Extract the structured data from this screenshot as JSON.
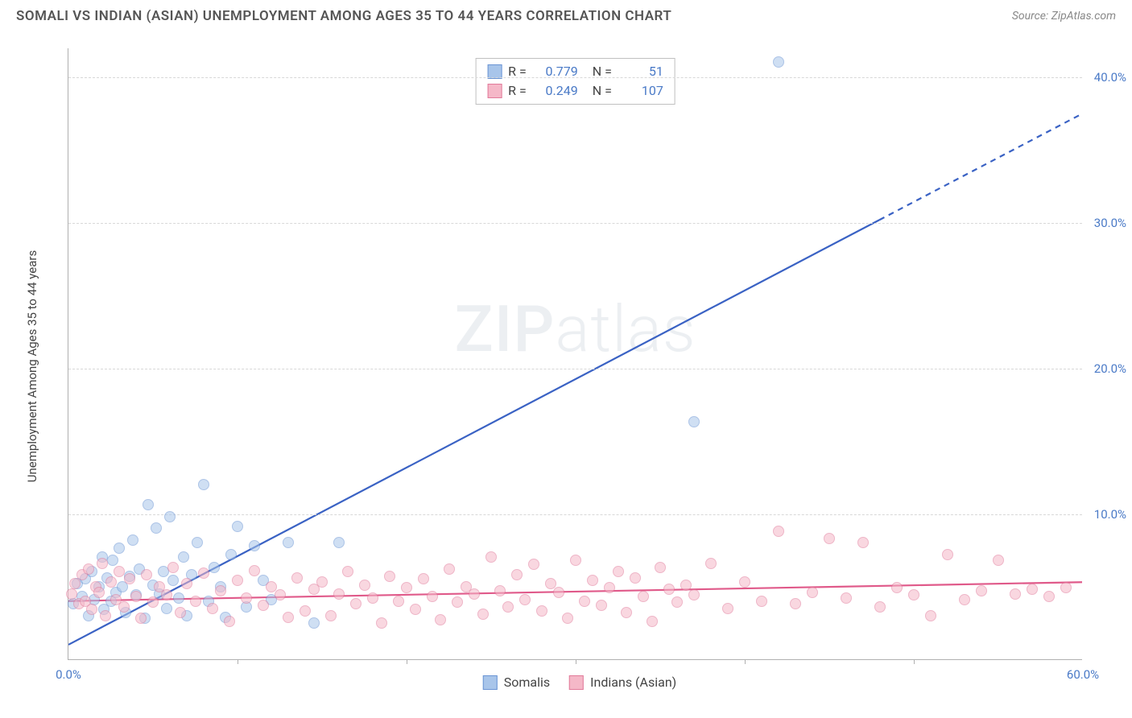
{
  "title": "SOMALI VS INDIAN (ASIAN) UNEMPLOYMENT AMONG AGES 35 TO 44 YEARS CORRELATION CHART",
  "source_label": "Source: ZipAtlas.com",
  "ylabel": "Unemployment Among Ages 35 to 44 years",
  "watermark_bold": "ZIP",
  "watermark_light": "atlas",
  "chart": {
    "type": "scatter",
    "xlim": [
      0,
      60
    ],
    "ylim": [
      0,
      42
    ],
    "xtick_labels": [
      {
        "v": 0,
        "label": "0.0%"
      },
      {
        "v": 60,
        "label": "60.0%"
      }
    ],
    "xticks_minor": [
      10,
      20,
      30,
      40,
      50
    ],
    "ytick_labels": [
      {
        "v": 10,
        "label": "10.0%"
      },
      {
        "v": 20,
        "label": "20.0%"
      },
      {
        "v": 30,
        "label": "30.0%"
      },
      {
        "v": 40,
        "label": "40.0%"
      }
    ],
    "grid_color": "#d8d8d8",
    "axis_color": "#b0b0b0",
    "background_color": "#ffffff",
    "marker_radius": 7,
    "marker_opacity": 0.55,
    "series": [
      {
        "name": "Somalis",
        "color_fill": "#a8c5ea",
        "color_stroke": "#6a94d4",
        "r_value": "0.779",
        "n_value": "51",
        "trend": {
          "x1": 0,
          "y1": 1.0,
          "x2": 48,
          "y2": 30.2,
          "x2_dash": 60,
          "y2_dash": 37.5,
          "stroke": "#3a62c4",
          "width": 2.2
        },
        "points": [
          [
            0.3,
            3.8
          ],
          [
            0.5,
            5.2
          ],
          [
            0.8,
            4.3
          ],
          [
            1.0,
            5.5
          ],
          [
            1.2,
            3.0
          ],
          [
            1.4,
            6.0
          ],
          [
            1.5,
            4.1
          ],
          [
            1.8,
            5.0
          ],
          [
            2.0,
            7.0
          ],
          [
            2.1,
            3.4
          ],
          [
            2.3,
            5.6
          ],
          [
            2.5,
            4.0
          ],
          [
            2.6,
            6.8
          ],
          [
            2.8,
            4.6
          ],
          [
            3.0,
            7.6
          ],
          [
            3.2,
            5.0
          ],
          [
            3.4,
            3.2
          ],
          [
            3.6,
            5.7
          ],
          [
            3.8,
            8.2
          ],
          [
            4.0,
            4.4
          ],
          [
            4.2,
            6.2
          ],
          [
            4.5,
            2.8
          ],
          [
            4.7,
            10.6
          ],
          [
            5.0,
            5.1
          ],
          [
            5.2,
            9.0
          ],
          [
            5.4,
            4.5
          ],
          [
            5.6,
            6.0
          ],
          [
            5.8,
            3.5
          ],
          [
            6.0,
            9.8
          ],
          [
            6.2,
            5.4
          ],
          [
            6.5,
            4.2
          ],
          [
            6.8,
            7.0
          ],
          [
            7.0,
            3.0
          ],
          [
            7.3,
            5.8
          ],
          [
            7.6,
            8.0
          ],
          [
            8.0,
            12.0
          ],
          [
            8.3,
            4.0
          ],
          [
            8.6,
            6.3
          ],
          [
            9.0,
            5.0
          ],
          [
            9.3,
            2.9
          ],
          [
            9.6,
            7.2
          ],
          [
            10.0,
            9.1
          ],
          [
            10.5,
            3.6
          ],
          [
            11.0,
            7.8
          ],
          [
            11.5,
            5.4
          ],
          [
            12.0,
            4.1
          ],
          [
            13.0,
            8.0
          ],
          [
            14.5,
            2.5
          ],
          [
            16.0,
            8.0
          ],
          [
            37.0,
            16.3
          ],
          [
            42.0,
            41.0
          ]
        ]
      },
      {
        "name": "Indians (Asian)",
        "color_fill": "#f5b8c8",
        "color_stroke": "#e17a9a",
        "r_value": "0.249",
        "n_value": "107",
        "trend": {
          "x1": 0,
          "y1": 4.0,
          "x2": 60,
          "y2": 5.3,
          "stroke": "#e05a8a",
          "width": 2.2
        },
        "points": [
          [
            0.2,
            4.5
          ],
          [
            0.4,
            5.2
          ],
          [
            0.6,
            3.8
          ],
          [
            0.8,
            5.8
          ],
          [
            1.0,
            4.0
          ],
          [
            1.2,
            6.2
          ],
          [
            1.4,
            3.4
          ],
          [
            1.6,
            5.0
          ],
          [
            1.8,
            4.6
          ],
          [
            2.0,
            6.6
          ],
          [
            2.2,
            3.0
          ],
          [
            2.5,
            5.3
          ],
          [
            2.8,
            4.1
          ],
          [
            3.0,
            6.0
          ],
          [
            3.3,
            3.6
          ],
          [
            3.6,
            5.5
          ],
          [
            4.0,
            4.3
          ],
          [
            4.3,
            2.8
          ],
          [
            4.6,
            5.8
          ],
          [
            5.0,
            3.9
          ],
          [
            5.4,
            5.0
          ],
          [
            5.8,
            4.4
          ],
          [
            6.2,
            6.3
          ],
          [
            6.6,
            3.2
          ],
          [
            7.0,
            5.2
          ],
          [
            7.5,
            4.0
          ],
          [
            8.0,
            5.9
          ],
          [
            8.5,
            3.5
          ],
          [
            9.0,
            4.7
          ],
          [
            9.5,
            2.6
          ],
          [
            10.0,
            5.4
          ],
          [
            10.5,
            4.2
          ],
          [
            11.0,
            6.1
          ],
          [
            11.5,
            3.7
          ],
          [
            12.0,
            5.0
          ],
          [
            12.5,
            4.4
          ],
          [
            13.0,
            2.9
          ],
          [
            13.5,
            5.6
          ],
          [
            14.0,
            3.3
          ],
          [
            14.5,
            4.8
          ],
          [
            15.0,
            5.3
          ],
          [
            15.5,
            3.0
          ],
          [
            16.0,
            4.5
          ],
          [
            16.5,
            6.0
          ],
          [
            17.0,
            3.8
          ],
          [
            17.5,
            5.1
          ],
          [
            18.0,
            4.2
          ],
          [
            18.5,
            2.5
          ],
          [
            19.0,
            5.7
          ],
          [
            19.5,
            4.0
          ],
          [
            20.0,
            4.9
          ],
          [
            20.5,
            3.4
          ],
          [
            21.0,
            5.5
          ],
          [
            21.5,
            4.3
          ],
          [
            22.0,
            2.7
          ],
          [
            22.5,
            6.2
          ],
          [
            23.0,
            3.9
          ],
          [
            23.5,
            5.0
          ],
          [
            24.0,
            4.5
          ],
          [
            24.5,
            3.1
          ],
          [
            25.0,
            7.0
          ],
          [
            25.5,
            4.7
          ],
          [
            26.0,
            3.6
          ],
          [
            26.5,
            5.8
          ],
          [
            27.0,
            4.1
          ],
          [
            27.5,
            6.5
          ],
          [
            28.0,
            3.3
          ],
          [
            28.5,
            5.2
          ],
          [
            29.0,
            4.6
          ],
          [
            29.5,
            2.8
          ],
          [
            30.0,
            6.8
          ],
          [
            30.5,
            4.0
          ],
          [
            31.0,
            5.4
          ],
          [
            31.5,
            3.7
          ],
          [
            32.0,
            4.9
          ],
          [
            32.5,
            6.0
          ],
          [
            33.0,
            3.2
          ],
          [
            33.5,
            5.6
          ],
          [
            34.0,
            4.3
          ],
          [
            34.5,
            2.6
          ],
          [
            35.0,
            6.3
          ],
          [
            35.5,
            4.8
          ],
          [
            36.0,
            3.9
          ],
          [
            36.5,
            5.1
          ],
          [
            37.0,
            4.4
          ],
          [
            38.0,
            6.6
          ],
          [
            39.0,
            3.5
          ],
          [
            40.0,
            5.3
          ],
          [
            41.0,
            4.0
          ],
          [
            42.0,
            8.8
          ],
          [
            43.0,
            3.8
          ],
          [
            44.0,
            4.6
          ],
          [
            45.0,
            8.3
          ],
          [
            46.0,
            4.2
          ],
          [
            47.0,
            8.0
          ],
          [
            48.0,
            3.6
          ],
          [
            49.0,
            4.9
          ],
          [
            50.0,
            4.4
          ],
          [
            51.0,
            3.0
          ],
          [
            52.0,
            7.2
          ],
          [
            53.0,
            4.1
          ],
          [
            54.0,
            4.7
          ],
          [
            55.0,
            6.8
          ],
          [
            56.0,
            4.5
          ],
          [
            57.0,
            4.8
          ],
          [
            58.0,
            4.3
          ],
          [
            59.0,
            4.9
          ]
        ]
      }
    ]
  },
  "legend_bottom": [
    "Somalis",
    "Indians (Asian)"
  ]
}
